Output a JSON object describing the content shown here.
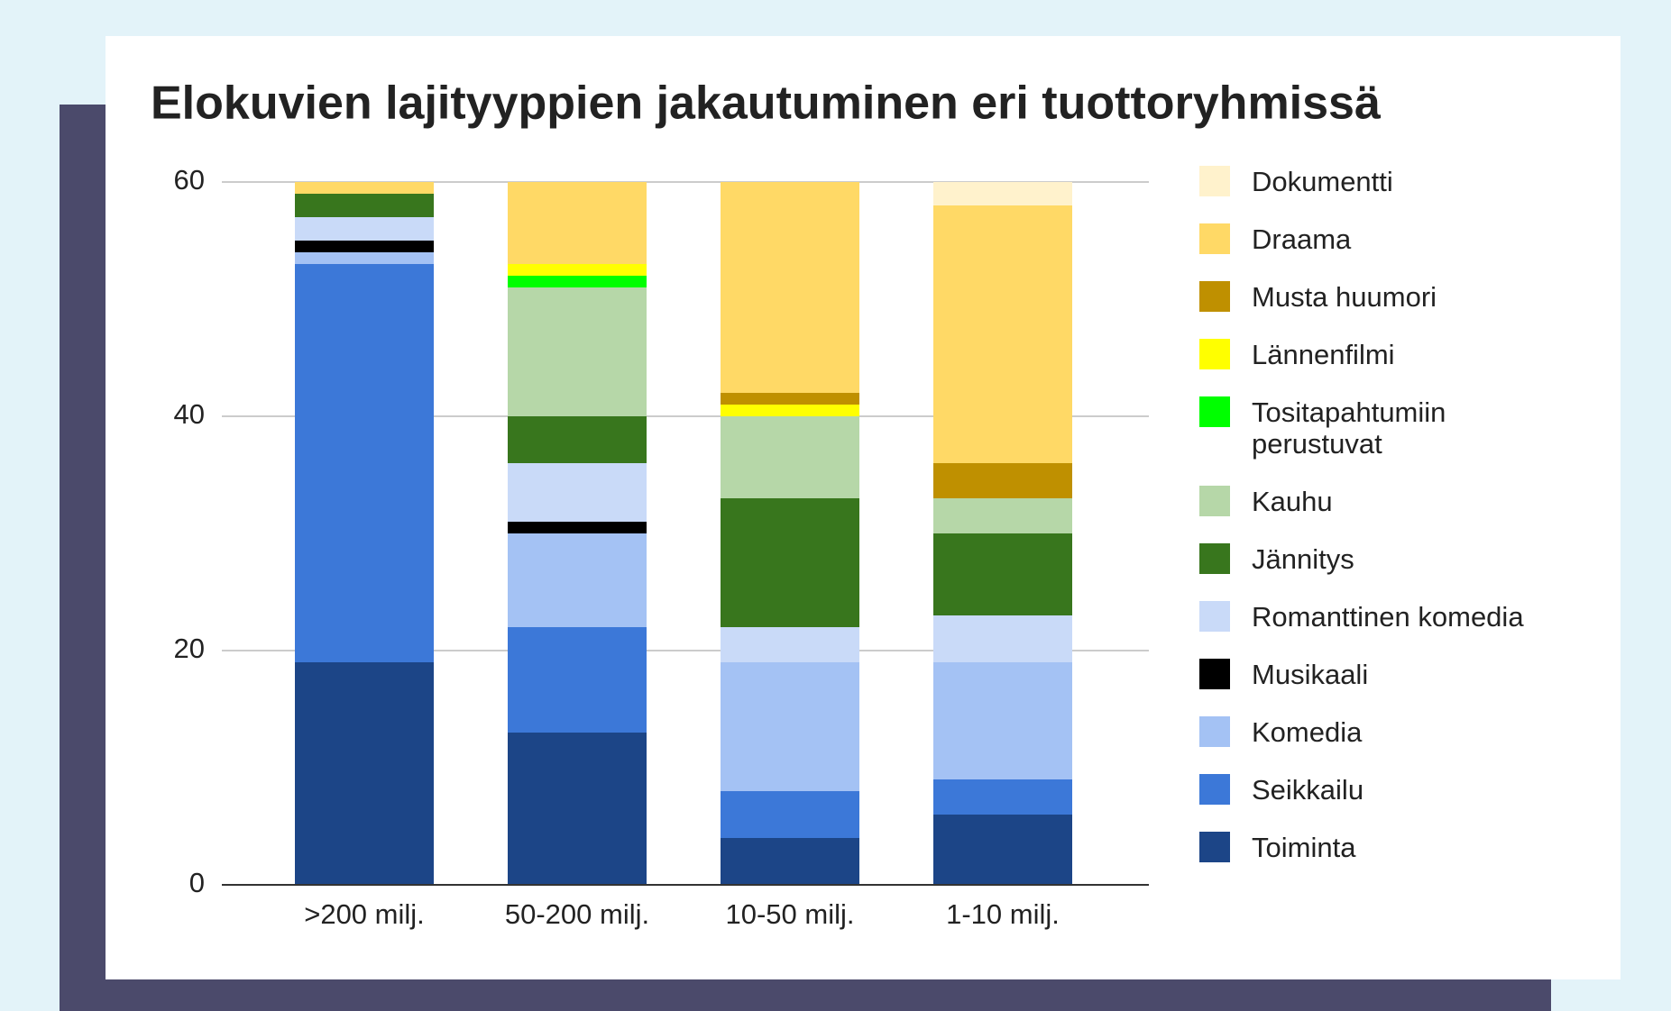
{
  "chart_data": {
    "type": "stacked-bar",
    "title": "Elokuvien lajityyppien jakautuminen eri tuottoryhmissä",
    "categories": [
      ">200 milj.",
      "50-200 milj.",
      "10-50 milj.",
      "1-10 milj."
    ],
    "series": [
      {
        "name": "Toiminta",
        "color": "#1c4587",
        "values": [
          19,
          13,
          4,
          6
        ]
      },
      {
        "name": "Seikkailu",
        "color": "#3c78d8",
        "values": [
          34,
          9,
          4,
          3
        ]
      },
      {
        "name": "Komedia",
        "color": "#a4c2f4",
        "values": [
          1,
          8,
          11,
          10
        ]
      },
      {
        "name": "Musikaali",
        "color": "#000000",
        "values": [
          1,
          1,
          0,
          0
        ]
      },
      {
        "name": "Romanttinen komedia",
        "color": "#c9daf8",
        "values": [
          2,
          5,
          3,
          4
        ]
      },
      {
        "name": "Jännitys",
        "color": "#38761d",
        "values": [
          2,
          4,
          11,
          7
        ]
      },
      {
        "name": "Kauhu",
        "color": "#b6d7a8",
        "values": [
          0,
          11,
          7,
          3
        ]
      },
      {
        "name": "Tositapahtumiin perustuvat",
        "color": "#00ff00",
        "values": [
          0,
          1,
          0,
          0
        ]
      },
      {
        "name": "Lännenfilmi",
        "color": "#ffff00",
        "values": [
          0,
          1,
          1,
          0
        ]
      },
      {
        "name": "Musta huumori",
        "color": "#bf9000",
        "values": [
          0,
          0,
          1,
          3
        ]
      },
      {
        "name": "Draama",
        "color": "#ffd966",
        "values": [
          1,
          7,
          18,
          22
        ]
      },
      {
        "name": "Dokumentti",
        "color": "#fff2cc",
        "values": [
          0,
          0,
          0,
          2
        ]
      }
    ],
    "ylim": [
      0,
      60
    ],
    "yticks": [
      0,
      20,
      40,
      60
    ],
    "grid": true,
    "legend": "right"
  }
}
